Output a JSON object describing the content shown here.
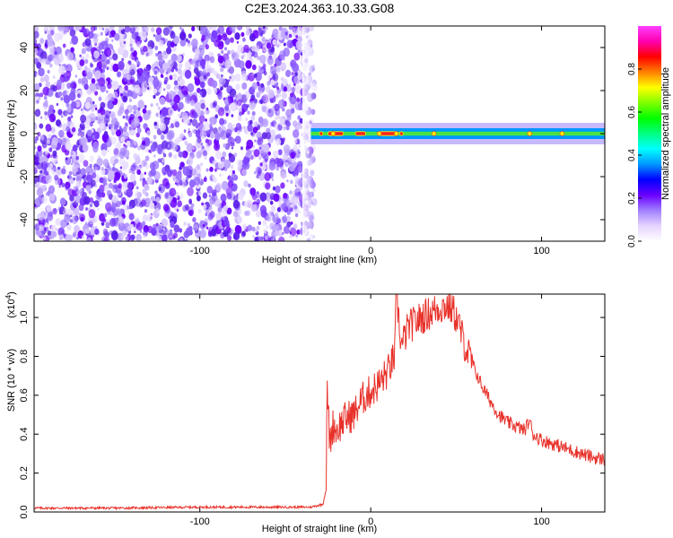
{
  "title": "C2E3.2024.363.10.33.G08",
  "chart_data": [
    {
      "type": "heatmap",
      "xlabel": "Height of straight line (km)",
      "ylabel": "Frequency (Hz)",
      "xlim": [
        -197,
        137
      ],
      "ylim": [
        -50,
        50
      ],
      "xticks": [
        -100,
        0,
        100
      ],
      "yticks": [
        -40,
        -20,
        0,
        20,
        40
      ],
      "noise_region_x": [
        -197,
        -33
      ],
      "signal_band": {
        "x_range": [
          -35,
          137
        ],
        "center_hz": 0,
        "halfwidth_hz": [
          5,
          2.5,
          1
        ],
        "peak_segments_x": [
          [
            -25,
            -16
          ],
          [
            -9,
            -3
          ],
          [
            5,
            15
          ],
          [
            17,
            19
          ],
          [
            -30,
            -28
          ]
        ],
        "peak_points_x": [
          -22,
          5,
          15,
          37,
          93,
          112
        ]
      },
      "colorbar": {
        "label": "Normalized spectral amplitude",
        "range": [
          0,
          1
        ],
        "ticks": [
          "0.0",
          "0.2",
          "0.4",
          "0.6",
          "0.8"
        ],
        "tick_values": [
          0.0,
          0.2,
          0.4,
          0.6,
          0.8
        ],
        "colors": [
          "#ffffff",
          "#e6d4ff",
          "#a080ff",
          "#6a00ff",
          "#0000ff",
          "#0096ff",
          "#00ffff",
          "#00ff80",
          "#00ff00",
          "#80ff00",
          "#ffff00",
          "#ff8000",
          "#ff0000",
          "#ff00b0",
          "#ff40ff"
        ]
      }
    },
    {
      "type": "line",
      "xlabel": "Height of straight line (km)",
      "ylabel": "SNR (10 * v/v)",
      "scale_label": "(x10",
      "scale_exp": "4",
      "scale_close": ")",
      "xlim": [
        -197,
        137
      ],
      "ylim": [
        0,
        1.12
      ],
      "xticks": [
        -100,
        0,
        100
      ],
      "yticks": [
        0.0,
        0.2,
        0.4,
        0.6,
        0.8,
        1.0
      ],
      "series": [
        {
          "color": "#e8312a",
          "x": [
            -197,
            -150,
            -100,
            -60,
            -35,
            -28,
            -26,
            -25.5,
            -24,
            -22,
            -20,
            -15,
            -10,
            -5,
            0,
            5,
            10,
            14,
            15,
            18,
            22,
            30,
            40,
            45,
            48,
            50,
            52,
            55,
            60,
            65,
            70,
            75,
            80,
            90,
            93,
            95,
            100,
            110,
            120,
            130,
            137
          ],
          "y": [
            0.02,
            0.02,
            0.025,
            0.025,
            0.025,
            0.04,
            0.12,
            0.65,
            0.35,
            0.45,
            0.42,
            0.48,
            0.5,
            0.58,
            0.62,
            0.66,
            0.72,
            0.8,
            1.12,
            0.85,
            0.95,
            1.0,
            1.05,
            1.06,
            1.04,
            1.0,
            0.95,
            0.86,
            0.75,
            0.65,
            0.57,
            0.5,
            0.46,
            0.42,
            0.47,
            0.4,
            0.37,
            0.34,
            0.31,
            0.28,
            0.27
          ]
        }
      ]
    }
  ]
}
